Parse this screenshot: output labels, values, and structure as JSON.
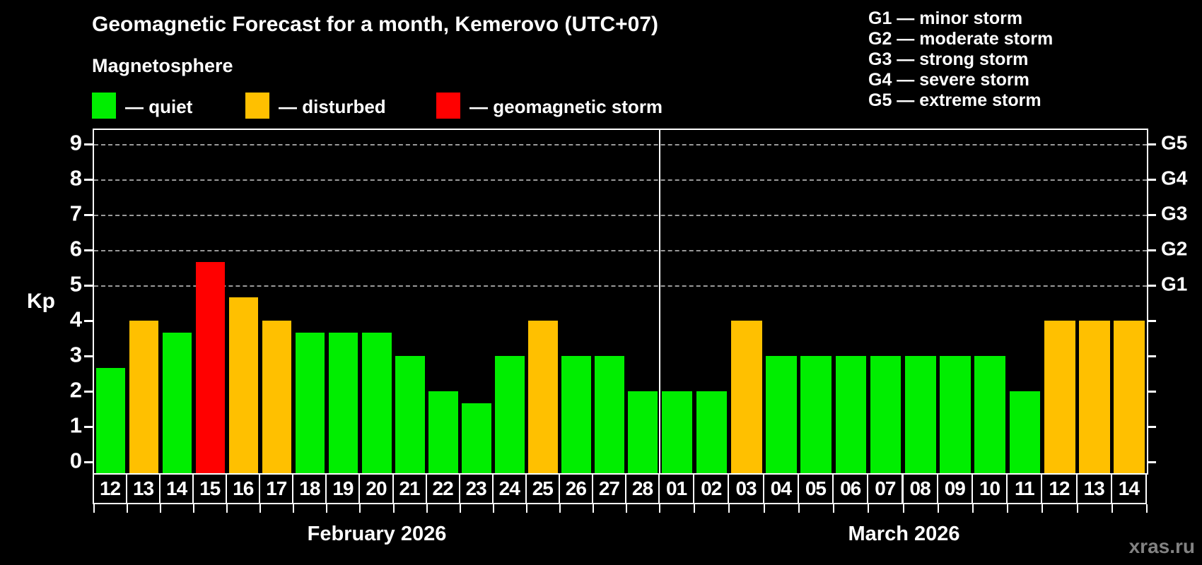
{
  "title": "Geomagnetic Forecast for a month, Kemerovo (UTC+07)",
  "subtitle": "Magnetosphere",
  "legend": {
    "quiet_label": "— quiet",
    "disturbed_label": "— disturbed",
    "storm_label": "— geomagnetic storm"
  },
  "g_legend": [
    "G1 — minor storm",
    "G2 — moderate storm",
    "G3 — strong storm",
    "G4 — severe storm",
    "G5 — extreme storm"
  ],
  "watermark": "xras.ru",
  "colors": {
    "quiet": "#00ee00",
    "disturbed": "#ffc000",
    "storm": "#ff0000",
    "grid": "#9a9a9a",
    "axis": "#ffffff",
    "background": "#000000"
  },
  "chart_data": {
    "type": "bar",
    "ylabel": "Kp",
    "ylim": [
      0,
      9.7
    ],
    "yticks": [
      0,
      1,
      2,
      3,
      4,
      5,
      6,
      7,
      8,
      9
    ],
    "gridlines_at": [
      5,
      6,
      7,
      8,
      9
    ],
    "grid": "dashed",
    "right_axis_labels": [
      {
        "kp": 5,
        "label": "G1"
      },
      {
        "kp": 6,
        "label": "G2"
      },
      {
        "kp": 7,
        "label": "G3"
      },
      {
        "kp": 8,
        "label": "G4"
      },
      {
        "kp": 9,
        "label": "G5"
      }
    ],
    "months": [
      {
        "label": "February 2026",
        "days": 17
      },
      {
        "label": "March 2026",
        "days": 14
      }
    ],
    "bars": [
      {
        "day": "12",
        "month": 0,
        "kp": 2.67,
        "status": "quiet"
      },
      {
        "day": "13",
        "month": 0,
        "kp": 4.0,
        "status": "disturbed"
      },
      {
        "day": "14",
        "month": 0,
        "kp": 3.67,
        "status": "quiet"
      },
      {
        "day": "15",
        "month": 0,
        "kp": 5.67,
        "status": "storm"
      },
      {
        "day": "16",
        "month": 0,
        "kp": 4.67,
        "status": "disturbed"
      },
      {
        "day": "17",
        "month": 0,
        "kp": 4.0,
        "status": "disturbed"
      },
      {
        "day": "18",
        "month": 0,
        "kp": 3.67,
        "status": "quiet"
      },
      {
        "day": "19",
        "month": 0,
        "kp": 3.67,
        "status": "quiet"
      },
      {
        "day": "20",
        "month": 0,
        "kp": 3.67,
        "status": "quiet"
      },
      {
        "day": "21",
        "month": 0,
        "kp": 3.0,
        "status": "quiet"
      },
      {
        "day": "22",
        "month": 0,
        "kp": 2.0,
        "status": "quiet"
      },
      {
        "day": "23",
        "month": 0,
        "kp": 1.67,
        "status": "quiet"
      },
      {
        "day": "24",
        "month": 0,
        "kp": 3.0,
        "status": "quiet"
      },
      {
        "day": "25",
        "month": 0,
        "kp": 4.0,
        "status": "disturbed"
      },
      {
        "day": "26",
        "month": 0,
        "kp": 3.0,
        "status": "quiet"
      },
      {
        "day": "27",
        "month": 0,
        "kp": 3.0,
        "status": "quiet"
      },
      {
        "day": "28",
        "month": 0,
        "kp": 2.0,
        "status": "quiet"
      },
      {
        "day": "01",
        "month": 1,
        "kp": 2.0,
        "status": "quiet"
      },
      {
        "day": "02",
        "month": 1,
        "kp": 2.0,
        "status": "quiet"
      },
      {
        "day": "03",
        "month": 1,
        "kp": 4.0,
        "status": "disturbed"
      },
      {
        "day": "04",
        "month": 1,
        "kp": 3.0,
        "status": "quiet"
      },
      {
        "day": "05",
        "month": 1,
        "kp": 3.0,
        "status": "quiet"
      },
      {
        "day": "06",
        "month": 1,
        "kp": 3.0,
        "status": "quiet"
      },
      {
        "day": "07",
        "month": 1,
        "kp": 3.0,
        "status": "quiet"
      },
      {
        "day": "08",
        "month": 1,
        "kp": 3.0,
        "status": "quiet"
      },
      {
        "day": "09",
        "month": 1,
        "kp": 3.0,
        "status": "quiet"
      },
      {
        "day": "10",
        "month": 1,
        "kp": 3.0,
        "status": "quiet"
      },
      {
        "day": "11",
        "month": 1,
        "kp": 2.0,
        "status": "quiet"
      },
      {
        "day": "12",
        "month": 1,
        "kp": 4.0,
        "status": "disturbed"
      },
      {
        "day": "13",
        "month": 1,
        "kp": 4.0,
        "status": "disturbed"
      },
      {
        "day": "14",
        "month": 1,
        "kp": 4.0,
        "status": "disturbed"
      }
    ]
  }
}
